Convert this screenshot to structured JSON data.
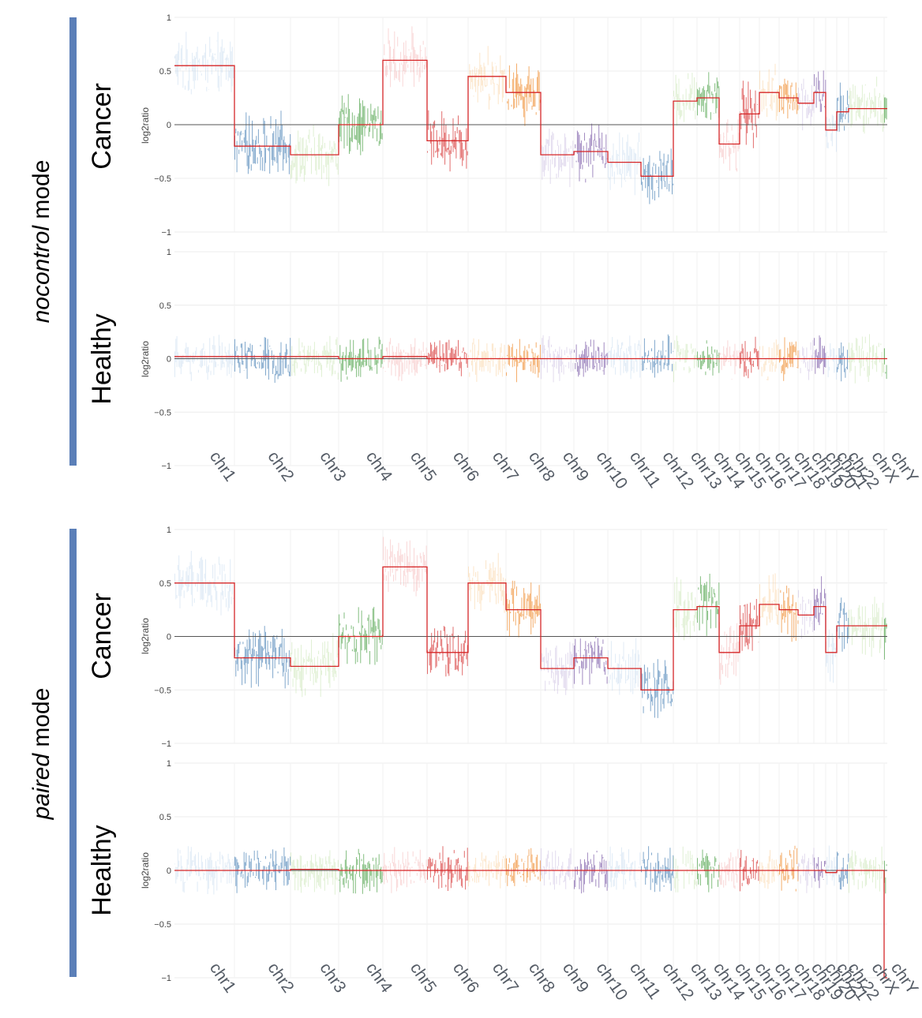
{
  "colors": {
    "mode_bar": "#5b7fb8",
    "segment_line": "#d62728",
    "zero_line": "#555555",
    "grid": "#ececec",
    "palette": [
      "#c6dbef",
      "#4c83b6",
      "#c7e3b0",
      "#4fa34a",
      "#f4b6b6",
      "#d62f2f",
      "#f9cf9c",
      "#ef8a2c",
      "#cbbde0",
      "#7b5aa6"
    ]
  },
  "modes": [
    {
      "emphasis": "nocontrol",
      "suffix": " mode"
    },
    {
      "emphasis": "paired",
      "suffix": " mode"
    }
  ],
  "chart_data": {
    "type": "line",
    "x_categories": [
      "chr1",
      "chr2",
      "chr3",
      "chr4",
      "chr5",
      "chr6",
      "chr7",
      "chr8",
      "chr9",
      "chr10",
      "chr11",
      "chr12",
      "chr13",
      "chr14",
      "chr15",
      "chr16",
      "chr17",
      "chr18",
      "chr19",
      "chr20",
      "chr21",
      "chr22",
      "chrX",
      "chrY"
    ],
    "chromosome_order": [
      "chr1",
      "chr2",
      "chr3",
      "chr4",
      "chr5",
      "chr6",
      "chr7",
      "chr8",
      "chr9",
      "chr10",
      "chr11",
      "chr12",
      "chr13",
      "chr14",
      "chr15",
      "chr16",
      "chr17",
      "chr18",
      "chr19",
      "chr20",
      "chr21",
      "chr22",
      "chrX",
      "chrY"
    ],
    "ylabel": "log2ratio",
    "ylim": [
      -1,
      1
    ],
    "yticks": [
      1,
      0.5,
      0,
      -0.5,
      -1
    ],
    "ytick_labels": [
      "1",
      "0.5",
      "0",
      "−0.5",
      "−1"
    ],
    "grid": true,
    "panels": [
      {
        "mode": "nocontrol",
        "condition": "Cancer",
        "segments_by_chromosome": [
          0.55,
          -0.2,
          -0.28,
          0.0,
          0.6,
          -0.15,
          0.45,
          0.3,
          -0.28,
          -0.25,
          -0.35,
          -0.48,
          0.22,
          0.25,
          -0.18,
          0.1,
          0.3,
          0.25,
          0.2,
          0.3,
          -0.05,
          0.12,
          0.15,
          0.15
        ]
      },
      {
        "mode": "nocontrol",
        "condition": "Healthy",
        "segments_by_chromosome": [
          0.02,
          0.02,
          0.02,
          0.0,
          0.02,
          0.0,
          0.0,
          0.0,
          0.0,
          0.0,
          0.0,
          0.0,
          0.0,
          0.0,
          0.0,
          0.0,
          0.0,
          0.0,
          0.0,
          0.0,
          0.0,
          0.0,
          0.0,
          0.0
        ]
      },
      {
        "mode": "paired",
        "condition": "Cancer",
        "segments_by_chromosome": [
          0.5,
          -0.2,
          -0.28,
          0.0,
          0.65,
          -0.15,
          0.5,
          0.25,
          -0.3,
          -0.2,
          -0.3,
          -0.5,
          0.25,
          0.28,
          -0.15,
          0.1,
          0.3,
          0.25,
          0.2,
          0.28,
          -0.15,
          0.1,
          0.1,
          0.1
        ]
      },
      {
        "mode": "paired",
        "condition": "Healthy",
        "segments_by_chromosome": [
          0.0,
          0.0,
          0.01,
          0.0,
          0.0,
          0.0,
          0.0,
          0.0,
          0.0,
          0.0,
          0.0,
          0.0,
          0.0,
          0.0,
          0.0,
          0.0,
          0.0,
          0.0,
          0.0,
          0.0,
          -0.02,
          0.0,
          0.0,
          -1.0
        ]
      }
    ]
  }
}
